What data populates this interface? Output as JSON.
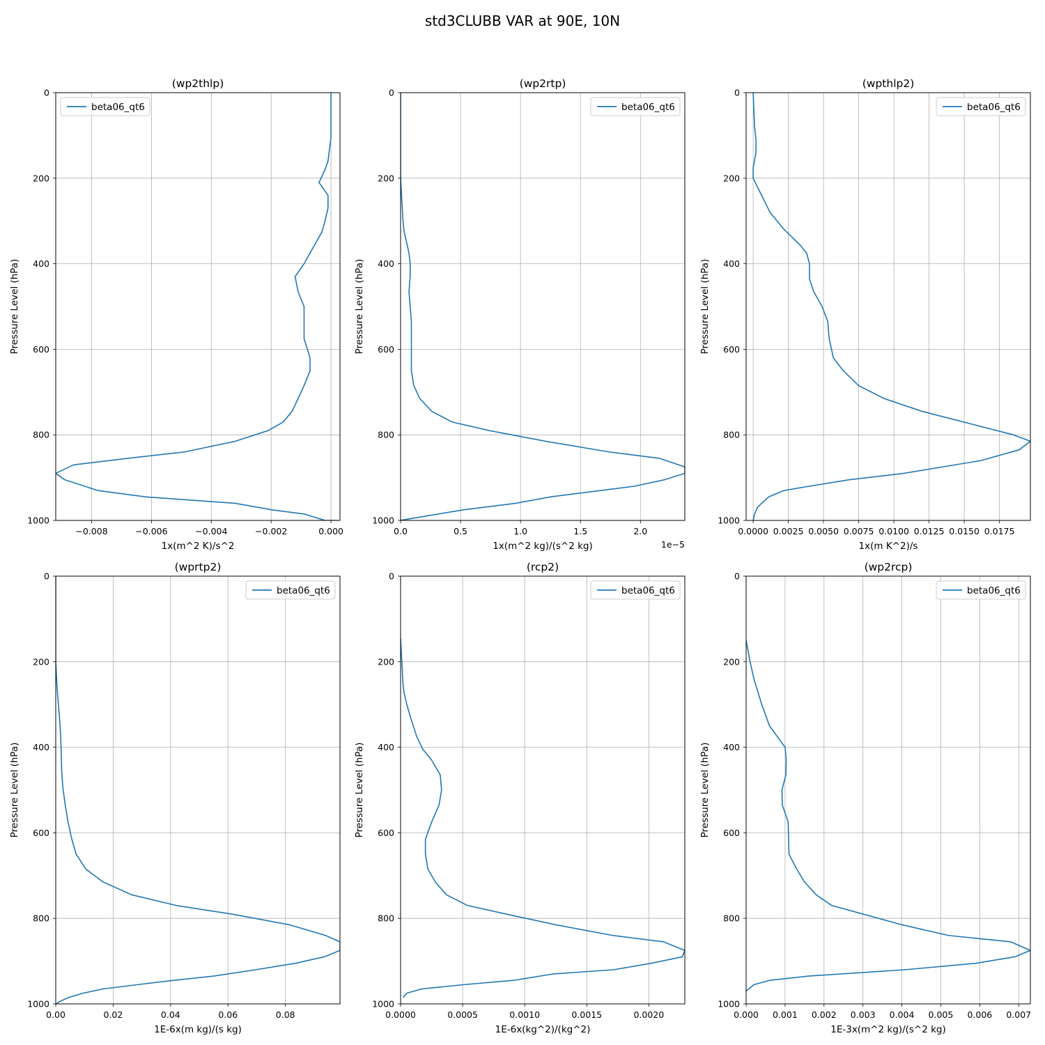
{
  "suptitle": "std3CLUBB VAR at 90E, 10N",
  "chart_data": [
    {
      "type": "line",
      "title": "(wp2thlp)",
      "xlabel": "1x(m^2 K)/s^2",
      "ylabel": "Pressure Level (hPa)",
      "xlim": [
        -0.0092,
        0.0003
      ],
      "ylim": [
        1000,
        0
      ],
      "xticks": [
        -0.008,
        -0.006,
        -0.004,
        -0.002,
        0.0
      ],
      "xtick_labels": [
        "−0.008",
        "−0.006",
        "−0.004",
        "−0.002",
        "0.000"
      ],
      "yticks": [
        0,
        200,
        400,
        600,
        800,
        1000
      ],
      "ytick_labels": [
        "0",
        "200",
        "400",
        "600",
        "800",
        "1000"
      ],
      "offset_text": "",
      "legend": {
        "label": "beta06_qt6",
        "loc": "upper left"
      },
      "series": [
        {
          "name": "beta06_qt6",
          "x": [
            0.0,
            0.0,
            0.0,
            -0.0001,
            -0.0002,
            -0.0004,
            -0.0001,
            -0.0001,
            -0.0002,
            -0.0003,
            -0.0005,
            -0.0007,
            -0.0009,
            -0.0012,
            -0.0011,
            -0.0009,
            -0.0009,
            -0.0009,
            -0.0007,
            -0.0007,
            -0.0009,
            -0.0011,
            -0.0013,
            -0.0016,
            -0.0021,
            -0.0032,
            -0.0049,
            -0.0068,
            -0.0086,
            -0.0092,
            -0.0089,
            -0.0078,
            -0.0062,
            -0.0032,
            -0.002,
            -0.0009,
            -0.0002,
            0.0002,
            0.0
          ],
          "y": [
            0,
            50,
            105,
            160,
            180,
            210,
            240,
            270,
            300,
            325,
            350,
            375,
            400,
            430,
            465,
            500,
            535,
            575,
            620,
            650,
            685,
            715,
            745,
            770,
            790,
            815,
            840,
            855,
            870,
            890,
            905,
            930,
            945,
            960,
            975,
            985,
            1000,
            1000,
            1000
          ]
        }
      ]
    },
    {
      "type": "line",
      "title": "(wp2rtp)",
      "xlabel": "1x(m^2 kg)/(s^2 kg)",
      "ylabel": "Pressure Level (hPa)",
      "xlim": [
        0,
        2.37
      ],
      "ylim": [
        1000,
        0
      ],
      "xticks": [
        0.0,
        0.5,
        1.0,
        1.5,
        2.0
      ],
      "xtick_labels": [
        "0.0",
        "0.5",
        "1.0",
        "1.5",
        "2.0"
      ],
      "yticks": [
        0,
        200,
        400,
        600,
        800,
        1000
      ],
      "ytick_labels": [
        "0",
        "200",
        "400",
        "600",
        "800",
        "1000"
      ],
      "offset_text": "1e−5",
      "legend": {
        "label": "beta06_qt6",
        "loc": "upper right"
      },
      "series": [
        {
          "name": "beta06_qt6",
          "x": [
            0.0,
            0.0,
            0.0,
            0.01,
            0.02,
            0.03,
            0.05,
            0.07,
            0.08,
            0.08,
            0.07,
            0.08,
            0.09,
            0.09,
            0.09,
            0.11,
            0.16,
            0.26,
            0.43,
            0.74,
            1.21,
            1.74,
            2.16,
            2.37,
            2.37,
            2.2,
            1.95,
            1.25,
            0.96,
            0.53,
            0.1,
            0.0
          ],
          "y": [
            0,
            100,
            200,
            250,
            300,
            325,
            350,
            375,
            400,
            430,
            465,
            500,
            535,
            575,
            650,
            685,
            715,
            745,
            770,
            790,
            815,
            840,
            855,
            875,
            890,
            905,
            920,
            945,
            960,
            975,
            995,
            1000
          ]
        }
      ]
    },
    {
      "type": "line",
      "title": "(wpthlp2)",
      "xlabel": "1x(m K^2)/s",
      "ylabel": "Pressure Level (hPa)",
      "xlim": [
        -0.0005,
        0.0197
      ],
      "ylim": [
        1000,
        0
      ],
      "xticks": [
        0.0,
        0.0025,
        0.005,
        0.0075,
        0.01,
        0.0125,
        0.015,
        0.0175
      ],
      "xtick_labels": [
        "0.0000",
        "0.0025",
        "0.0050",
        "0.0075",
        "0.0100",
        "0.0125",
        "0.0150",
        "0.0175"
      ],
      "yticks": [
        0,
        200,
        400,
        600,
        800,
        1000
      ],
      "ytick_labels": [
        "0",
        "200",
        "400",
        "600",
        "800",
        "1000"
      ],
      "offset_text": "",
      "legend": {
        "label": "beta06_qt6",
        "loc": "upper right"
      },
      "series": [
        {
          "name": "beta06_qt6",
          "x": [
            0.0,
            0.0001,
            0.0002,
            0.0002,
            0.0,
            0.0,
            0.0006,
            0.0012,
            0.0022,
            0.0033,
            0.0038,
            0.004,
            0.004,
            0.0043,
            0.0049,
            0.0053,
            0.0054,
            0.0057,
            0.0064,
            0.0075,
            0.0093,
            0.012,
            0.0185,
            0.0197,
            0.0189,
            0.0162,
            0.0107,
            0.0068,
            0.004,
            0.0022,
            0.0011,
            0.0006,
            0.0003,
            0.0001,
            0.0
          ],
          "y": [
            0,
            80,
            110,
            140,
            175,
            200,
            240,
            280,
            320,
            355,
            375,
            400,
            435,
            465,
            500,
            535,
            575,
            620,
            650,
            685,
            715,
            745,
            800,
            815,
            835,
            860,
            890,
            905,
            920,
            930,
            945,
            960,
            970,
            985,
            1000
          ]
        }
      ]
    },
    {
      "type": "line",
      "title": "(wprtp2)",
      "xlabel": "1E-6x(m kg)/(s kg)",
      "ylabel": "Pressure Level (hPa)",
      "xlim": [
        0,
        0.099
      ],
      "ylim": [
        1000,
        0
      ],
      "xticks": [
        0.0,
        0.02,
        0.04,
        0.06,
        0.08
      ],
      "xtick_labels": [
        "0.00",
        "0.02",
        "0.04",
        "0.06",
        "0.08"
      ],
      "yticks": [
        0,
        200,
        400,
        600,
        800,
        1000
      ],
      "ytick_labels": [
        "0",
        "200",
        "400",
        "600",
        "800",
        "1000"
      ],
      "offset_text": "",
      "legend": {
        "label": "beta06_qt6",
        "loc": "upper right"
      },
      "series": [
        {
          "name": "beta06_qt6",
          "x": [
            0.0,
            0.0,
            0.0005,
            0.0013,
            0.0017,
            0.0019,
            0.0021,
            0.0025,
            0.0033,
            0.0043,
            0.0056,
            0.0071,
            0.0105,
            0.0165,
            0.0265,
            0.042,
            0.0613,
            0.0814,
            0.094,
            0.099,
            0.099,
            0.0935,
            0.0835,
            0.0698,
            0.055,
            0.041,
            0.0285,
            0.0165,
            0.0095,
            0.0045,
            0.0012,
            0.0002
          ],
          "y": [
            0,
            200,
            265,
            330,
            370,
            410,
            460,
            495,
            535,
            575,
            615,
            650,
            685,
            715,
            745,
            770,
            790,
            815,
            840,
            855,
            875,
            890,
            905,
            920,
            935,
            945,
            955,
            965,
            975,
            985,
            995,
            1000
          ]
        }
      ]
    },
    {
      "type": "line",
      "title": "(rcp2)",
      "xlabel": "1E-6x(kg^2)/(kg^2)",
      "ylabel": "Pressure Level (hPa)",
      "xlim": [
        0,
        0.00229
      ],
      "ylim": [
        1000,
        0
      ],
      "xticks": [
        0.0,
        0.0005,
        0.001,
        0.0015,
        0.002
      ],
      "xtick_labels": [
        "0.0000",
        "0.0005",
        "0.0010",
        "0.0015",
        "0.0020"
      ],
      "yticks": [
        0,
        200,
        400,
        600,
        800,
        1000
      ],
      "ytick_labels": [
        "0",
        "200",
        "400",
        "600",
        "800",
        "1000"
      ],
      "offset_text": "",
      "legend": {
        "label": "beta06_qt6",
        "loc": "upper right"
      },
      "series": [
        {
          "name": "beta06_qt6",
          "x": [
            0.0,
            1e-05,
            2e-05,
            3e-05,
            5e-05,
            8e-05,
            0.00013,
            0.00018,
            0.00025,
            0.00032,
            0.00033,
            0.00031,
            0.00025,
            0.0002,
            0.0002,
            0.00022,
            0.00028,
            0.00037,
            0.00054,
            0.00085,
            0.00125,
            0.00171,
            0.00212,
            0.00229,
            0.00227,
            0.00202,
            0.00172,
            0.00123,
            0.00091,
            0.00051,
            0.00017,
            5e-05,
            2e-05
          ],
          "y": [
            145,
            200,
            255,
            275,
            300,
            330,
            375,
            405,
            430,
            465,
            500,
            535,
            575,
            615,
            650,
            685,
            715,
            745,
            770,
            790,
            815,
            840,
            855,
            875,
            890,
            905,
            920,
            930,
            945,
            955,
            965,
            975,
            985
          ]
        }
      ]
    },
    {
      "type": "line",
      "title": "(wp2rcp)",
      "xlabel": "1E-3x(m^2 kg)/(s^2 kg)",
      "ylabel": "Pressure Level (hPa)",
      "xlim": [
        0,
        0.0073
      ],
      "ylim": [
        1000,
        0
      ],
      "xticks": [
        0.0,
        0.001,
        0.002,
        0.003,
        0.004,
        0.005,
        0.006,
        0.007
      ],
      "xtick_labels": [
        "0.000",
        "0.001",
        "0.002",
        "0.003",
        "0.004",
        "0.005",
        "0.006",
        "0.007"
      ],
      "yticks": [
        0,
        200,
        400,
        600,
        800,
        1000
      ],
      "ytick_labels": [
        "0",
        "200",
        "400",
        "600",
        "800",
        "1000"
      ],
      "offset_text": "",
      "legend": {
        "label": "beta06_qt6",
        "loc": "upper right"
      },
      "series": [
        {
          "name": "beta06_qt6",
          "x": [
            0.0,
            0.0001,
            0.0002,
            0.0003,
            0.0004,
            0.0005,
            0.0006,
            0.0008,
            0.001,
            0.00103,
            0.00102,
            0.00092,
            0.00093,
            0.00108,
            0.00109,
            0.0011,
            0.0013,
            0.0015,
            0.0018,
            0.0022,
            0.003,
            0.004,
            0.0052,
            0.0068,
            0.0073,
            0.0069,
            0.0059,
            0.0041,
            0.0016,
            0.0006,
            0.0002,
            0.0
          ],
          "y": [
            150,
            200,
            240,
            270,
            300,
            325,
            350,
            375,
            400,
            430,
            465,
            500,
            535,
            575,
            615,
            650,
            685,
            715,
            745,
            770,
            790,
            815,
            840,
            855,
            875,
            890,
            905,
            920,
            935,
            945,
            955,
            970
          ]
        }
      ]
    }
  ]
}
